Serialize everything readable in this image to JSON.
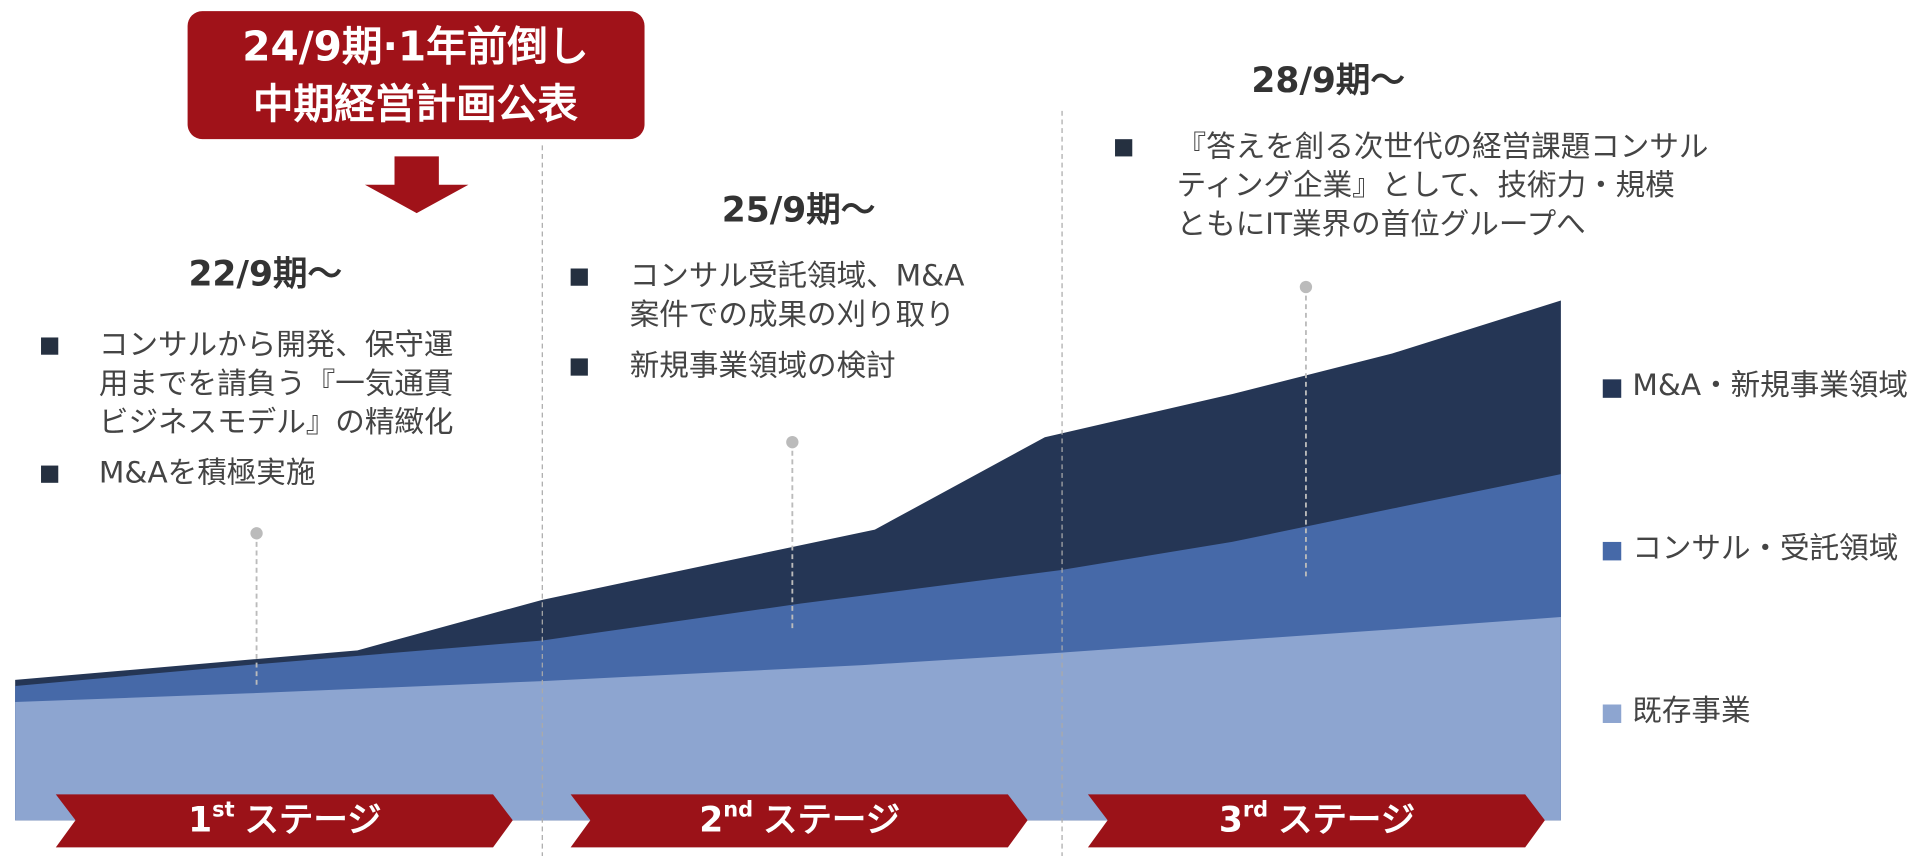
{
  "callout": {
    "lines": [
      "24/9期·1年前倒し",
      "中期経営計画公表"
    ]
  },
  "stages": [
    {
      "period": "22/9期〜",
      "bullets": [
        [
          "コンサルから開発、保守運",
          "用までを請負う『一気通貫",
          "ビジネスモデル』の精緻化"
        ],
        [
          "M&Aを積極実施"
        ]
      ],
      "label": {
        "number": "1",
        "suffix": "st",
        "word": "ステージ"
      }
    },
    {
      "period": "25/9期〜",
      "bullets": [
        [
          "コンサル受託領域、M&A",
          "案件での成果の刈り取り"
        ],
        [
          "新規事業領域の検討"
        ]
      ],
      "label": {
        "number": "2",
        "suffix": "nd",
        "word": "ステージ"
      }
    },
    {
      "period": "28/9期〜",
      "bullets": [
        [
          "『答えを創る次世代の経営課題コンサル",
          "ティング企業』として、技術力・規模",
          "ともにIT業界の首位グループへ"
        ]
      ],
      "label": {
        "number": "3",
        "suffix": "rd",
        "word": "ステージ"
      }
    }
  ],
  "legend": [
    "M&A・新規事業領域",
    "コンサル・受託領域",
    "既存事業"
  ]
}
